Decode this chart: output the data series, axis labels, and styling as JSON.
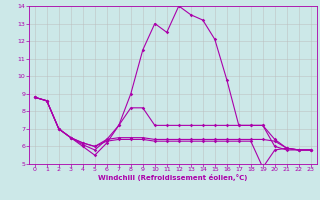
{
  "xlabel": "Windchill (Refroidissement éolien,°C)",
  "background_color": "#cce8e8",
  "line_color": "#aa00aa",
  "grid_color": "#bbbbbb",
  "xlim": [
    -0.5,
    23.5
  ],
  "ylim": [
    5,
    14
  ],
  "xticks": [
    0,
    1,
    2,
    3,
    4,
    5,
    6,
    7,
    8,
    9,
    10,
    11,
    12,
    13,
    14,
    15,
    16,
    17,
    18,
    19,
    20,
    21,
    22,
    23
  ],
  "yticks": [
    5,
    6,
    7,
    8,
    9,
    10,
    11,
    12,
    13,
    14
  ],
  "lines": [
    {
      "x": [
        0,
        1,
        2,
        3,
        4,
        5,
        6,
        7,
        8,
        9,
        10,
        11,
        12,
        13,
        14,
        15,
        16,
        17,
        18,
        19,
        20,
        21,
        22,
        23
      ],
      "y": [
        8.8,
        8.6,
        7.0,
        6.5,
        6.0,
        5.5,
        6.2,
        7.2,
        9.0,
        11.5,
        13.0,
        12.5,
        14.0,
        13.5,
        13.2,
        12.1,
        9.8,
        7.2,
        7.2,
        7.2,
        6.0,
        5.8,
        5.8,
        5.8
      ]
    },
    {
      "x": [
        0,
        1,
        2,
        3,
        4,
        5,
        6,
        7,
        8,
        9,
        10,
        11,
        12,
        13,
        14,
        15,
        16,
        17,
        18,
        19,
        20,
        21,
        22,
        23
      ],
      "y": [
        8.8,
        8.6,
        7.0,
        6.5,
        6.1,
        5.8,
        6.4,
        7.2,
        8.2,
        8.2,
        7.2,
        7.2,
        7.2,
        7.2,
        7.2,
        7.2,
        7.2,
        7.2,
        7.2,
        7.2,
        6.4,
        5.9,
        5.8,
        5.8
      ]
    },
    {
      "x": [
        0,
        1,
        2,
        3,
        4,
        5,
        6,
        7,
        8,
        9,
        10,
        11,
        12,
        13,
        14,
        15,
        16,
        17,
        18,
        19,
        20,
        21,
        22,
        23
      ],
      "y": [
        8.8,
        8.6,
        7.0,
        6.5,
        6.2,
        6.0,
        6.4,
        6.5,
        6.5,
        6.5,
        6.4,
        6.4,
        6.4,
        6.4,
        6.4,
        6.4,
        6.4,
        6.4,
        6.4,
        6.4,
        6.3,
        5.9,
        5.8,
        5.8
      ]
    },
    {
      "x": [
        0,
        1,
        2,
        3,
        4,
        5,
        6,
        7,
        8,
        9,
        10,
        11,
        12,
        13,
        14,
        15,
        16,
        17,
        18,
        19,
        20,
        21,
        22,
        23
      ],
      "y": [
        8.8,
        8.6,
        7.0,
        6.5,
        6.2,
        6.0,
        6.3,
        6.4,
        6.4,
        6.4,
        6.3,
        6.3,
        6.3,
        6.3,
        6.3,
        6.3,
        6.3,
        6.3,
        6.3,
        4.8,
        5.8,
        5.9,
        5.8,
        5.8
      ]
    }
  ]
}
